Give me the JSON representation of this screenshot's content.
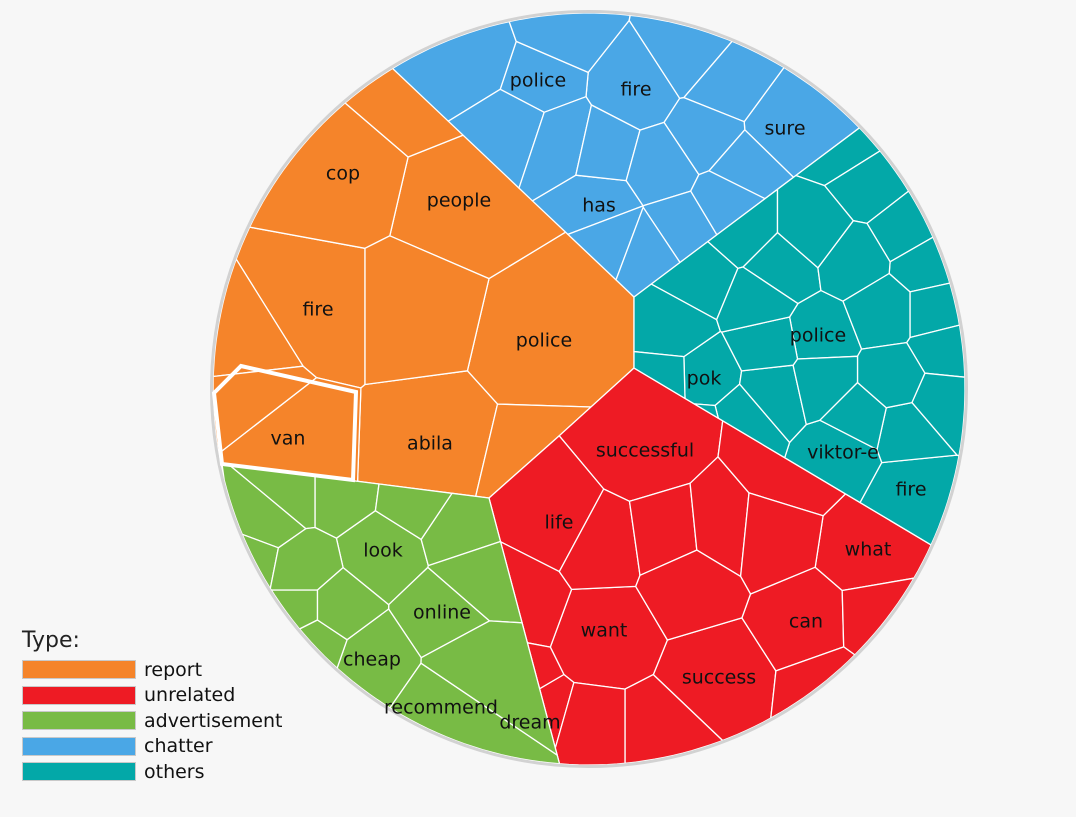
{
  "chart_data": {
    "type": "voronoi-treemap",
    "legend_title": "Type:",
    "categories": [
      {
        "name": "report",
        "color": "#f5842a",
        "cells": [
          {
            "label": "police"
          },
          {
            "label": "fire"
          },
          {
            "label": "people"
          },
          {
            "label": "abila"
          },
          {
            "label": "cop"
          },
          {
            "label": "van"
          },
          {
            "label": ""
          },
          {
            "label": ""
          },
          {
            "label": ""
          },
          {
            "label": ""
          },
          {
            "label": ""
          },
          {
            "label": ""
          }
        ]
      },
      {
        "name": "unrelated",
        "color": "#ee1b24",
        "cells": [
          {
            "label": "success"
          },
          {
            "label": "want"
          },
          {
            "label": "successful"
          },
          {
            "label": "life"
          },
          {
            "label": "dream"
          },
          {
            "label": "can"
          },
          {
            "label": "what"
          },
          {
            "label": ""
          },
          {
            "label": ""
          },
          {
            "label": ""
          },
          {
            "label": ""
          },
          {
            "label": ""
          },
          {
            "label": ""
          },
          {
            "label": ""
          },
          {
            "label": ""
          },
          {
            "label": ""
          },
          {
            "label": ""
          },
          {
            "label": ""
          },
          {
            "label": ""
          }
        ]
      },
      {
        "name": "advertisement",
        "color": "#78bb45",
        "cells": [
          {
            "label": "look"
          },
          {
            "label": "online"
          },
          {
            "label": "cheap"
          },
          {
            "label": "recommend"
          },
          {
            "label": ""
          },
          {
            "label": ""
          },
          {
            "label": ""
          },
          {
            "label": ""
          },
          {
            "label": ""
          },
          {
            "label": ""
          },
          {
            "label": ""
          },
          {
            "label": ""
          },
          {
            "label": ""
          },
          {
            "label": ""
          },
          {
            "label": ""
          },
          {
            "label": ""
          }
        ]
      },
      {
        "name": "chatter",
        "color": "#4aa7e6",
        "cells": [
          {
            "label": "fire"
          },
          {
            "label": "police"
          },
          {
            "label": "has"
          },
          {
            "label": "sure"
          },
          {
            "label": ""
          },
          {
            "label": ""
          },
          {
            "label": ""
          },
          {
            "label": ""
          },
          {
            "label": ""
          },
          {
            "label": ""
          },
          {
            "label": ""
          },
          {
            "label": ""
          },
          {
            "label": ""
          },
          {
            "label": ""
          },
          {
            "label": ""
          },
          {
            "label": ""
          },
          {
            "label": ""
          },
          {
            "label": ""
          }
        ]
      },
      {
        "name": "others",
        "color": "#03a8a8",
        "cells": [
          {
            "label": "police"
          },
          {
            "label": "pok"
          },
          {
            "label": "viktor-e"
          },
          {
            "label": "fire"
          },
          {
            "label": ""
          },
          {
            "label": ""
          },
          {
            "label": ""
          },
          {
            "label": ""
          },
          {
            "label": ""
          },
          {
            "label": ""
          },
          {
            "label": ""
          },
          {
            "label": ""
          },
          {
            "label": ""
          },
          {
            "label": ""
          },
          {
            "label": ""
          },
          {
            "label": ""
          },
          {
            "label": ""
          },
          {
            "label": ""
          },
          {
            "label": ""
          },
          {
            "label": ""
          },
          {
            "label": ""
          },
          {
            "label": ""
          },
          {
            "label": ""
          },
          {
            "label": ""
          },
          {
            "label": ""
          },
          {
            "label": ""
          },
          {
            "label": ""
          },
          {
            "label": ""
          }
        ]
      }
    ]
  }
}
